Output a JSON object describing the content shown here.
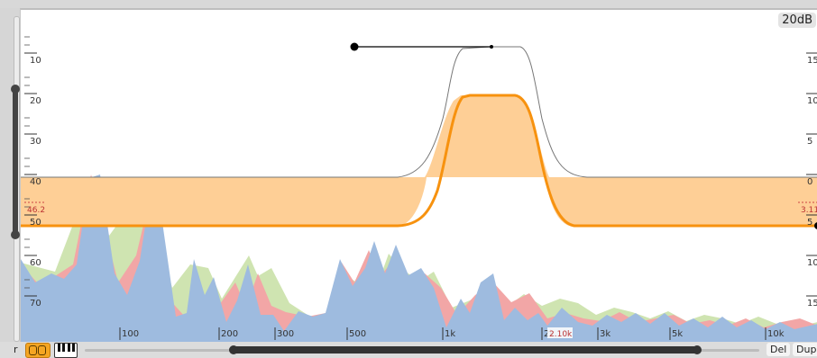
{
  "display": {
    "range_label": "20dB",
    "db_ticks_left": [
      "10",
      "20",
      "30",
      "40",
      "50",
      "60",
      "70"
    ],
    "db_ticks_right": [
      "15",
      "10",
      "5",
      "0",
      "5",
      "10",
      "15"
    ],
    "freq_ticks": [
      "100",
      "200",
      "300",
      "500",
      "1k",
      "2k",
      "3k",
      "5k",
      "10k"
    ],
    "left_marker": "46.2",
    "right_marker": "3.11",
    "cursor_freq": "2.10k"
  },
  "toolbar": {
    "left_cut_text": "r",
    "delete_label": "Del",
    "duplicate_label": "Dup"
  },
  "icons": {
    "mode": "orange-loop-mode-icon",
    "piano": "piano-keys-icon"
  },
  "colors": {
    "accent": "#f7920f",
    "band_fill": "#fecf96",
    "spectrum_blue": "#9ebbdf",
    "spectrum_red": "#f2a6a6",
    "spectrum_green": "#cfe4b1"
  }
}
